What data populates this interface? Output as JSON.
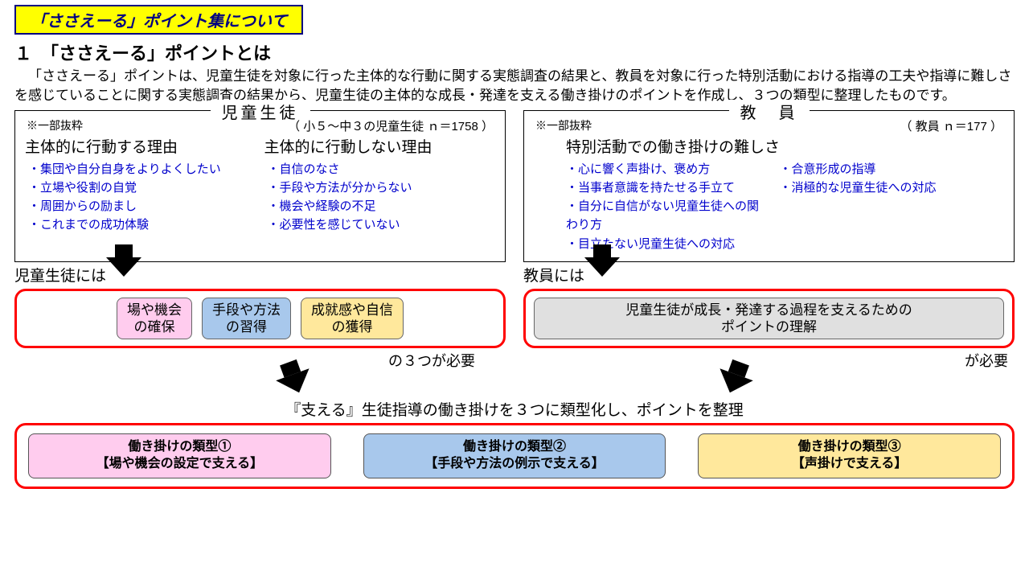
{
  "banner": "「ささえーる」ポイント集について",
  "section_title": "１　「ささえーる」ポイントとは",
  "intro": "「ささえーる」ポイントは、児童生徒を対象に行った主体的な行動に関する実態調査の結果と、教員を対象に行った特別活動における指導の工夫や指導に難しさを感じていることに関する実態調査の結果から、児童生徒の主体的な成長・発達を支える働き掛けのポイントを作成し、３つの類型に整理したものです。",
  "students": {
    "label": "児童生徒",
    "excerpt": "※一部抜粋",
    "n": "（ 小５～中３の児童生徒 ｎ＝1758 ）",
    "colA_head": "主体的に行動する理由",
    "colA": [
      "集団や自分自身をよりよくしたい",
      "立場や役割の自覚",
      "周囲からの励まし",
      "これまでの成功体験"
    ],
    "colB_head": "主体的に行動しない理由",
    "colB": [
      "自信のなさ",
      "手段や方法が分からない",
      "機会や経験の不足",
      "必要性を感じていない"
    ],
    "below_label": "児童生徒には",
    "pills": [
      {
        "text": "場や機会\nの確保",
        "cls": "pink"
      },
      {
        "text": "手段や方法\nの習得",
        "cls": "blue"
      },
      {
        "text": "成就感や自信\nの獲得",
        "cls": "yellow"
      }
    ],
    "tail": "の３つが必要"
  },
  "teachers": {
    "label": "教　員",
    "excerpt": "※一部抜粋",
    "n": "（ 教員 ｎ＝177 ）",
    "head": "特別活動での働き掛けの難しさ",
    "leftList": [
      "心に響く声掛け、褒め方",
      "当事者意識を持たせる手立て",
      "自分に自信がない児童生徒への関わり方",
      "目立たない児童生徒への対応"
    ],
    "rightList": [
      "合意形成の指導",
      "消極的な児童生徒への対応"
    ],
    "below_label": "教員には",
    "pill": "児童生徒が成長・発達する過程を支えるための\nポイントの理解",
    "tail": "が必要"
  },
  "center": "『支える』生徒指導の働き掛けを３つに類型化し、ポイントを整理",
  "types": [
    {
      "t1": "働き掛けの類型①",
      "t2": "【場や機会の設定で支える】",
      "cls": "pink"
    },
    {
      "t1": "働き掛けの類型②",
      "t2": "【手段や方法の例示で支える】",
      "cls": "blue"
    },
    {
      "t1": "働き掛けの類型③",
      "t2": "【声掛けで支える】",
      "cls": "yellow"
    }
  ],
  "colors": {
    "banner_bg": "#ffff00",
    "banner_border": "#000080",
    "bullet": "#0000cc",
    "red_border": "#ff0000",
    "pink": "#ffccee",
    "blue": "#a8c8ec",
    "yellow": "#ffe89c",
    "gray": "#e0e0e0"
  }
}
